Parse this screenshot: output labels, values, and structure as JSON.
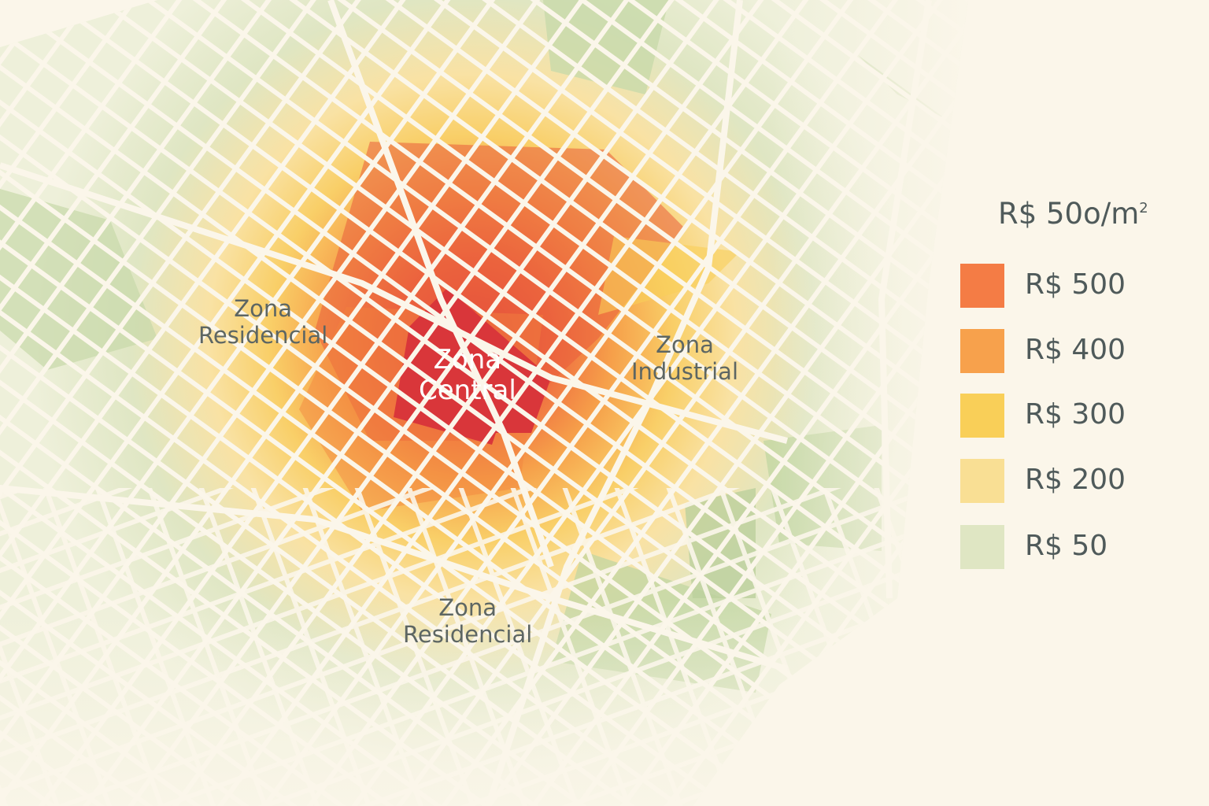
{
  "map": {
    "title": "R$ 50o/m",
    "title_superscript": "2",
    "zones": [
      {
        "id": "central",
        "line1": "Zona",
        "line2": "Central"
      },
      {
        "id": "residencial-west",
        "line1": "Zona",
        "line2": "Residencial"
      },
      {
        "id": "industrial",
        "line1": "Zona",
        "line2": "Industrial"
      },
      {
        "id": "residencial-south",
        "line1": "Zona",
        "line2": "Residencial"
      }
    ],
    "legend": [
      {
        "label": "R$ 500",
        "value": 500,
        "color": "#f47c45"
      },
      {
        "label": "R$ 400",
        "value": 400,
        "color": "#f7a14c"
      },
      {
        "label": "R$ 300",
        "value": 300,
        "color": "#f9cf58"
      },
      {
        "label": "R$ 200",
        "value": 200,
        "color": "#f9df94"
      },
      {
        "label": "R$ 50",
        "value": 50,
        "color": "#dfe6c3"
      }
    ],
    "colors": {
      "background": "#fbf6ea",
      "central": "#d9363a",
      "high": "#e85a3d",
      "green_dark": "#bfd2a0",
      "street": "#fbf6ea"
    }
  }
}
